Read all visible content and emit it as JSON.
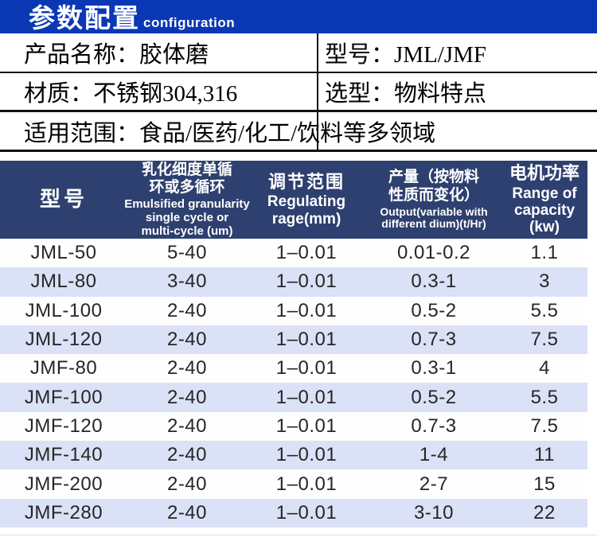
{
  "banner": {
    "title_cn": "参数配置",
    "title_en": "configuration",
    "bg_color": "#0a38b5"
  },
  "info": {
    "product_name": "产品名称：胶体磨",
    "model": "型号：JML/JMF",
    "material": "材质：不锈钢304,316",
    "selection": "选型：物料特点",
    "scope": "适用范围：食品/医药/化工/饮料等多领域"
  },
  "table": {
    "header_bg": "#2e406f",
    "stripe_color": "#dbe1f6",
    "columns": [
      {
        "cn": "型号",
        "en": "",
        "cn_lines": [
          "型号"
        ],
        "en_lines": []
      },
      {
        "cn": "乳化细度单循环或多循环",
        "en": "Emulsified granularity single cycle or multi-cycle (um)",
        "cn_lines": [
          "乳化细度单循",
          "环或多循环"
        ],
        "en_lines": [
          "Emulsified granularity",
          "single cycle or",
          "multi-cycle (um)"
        ]
      },
      {
        "cn": "调节范围",
        "en": "Regulating rage(mm)",
        "cn_lines": [
          "调节范围"
        ],
        "en_lines": [
          "Regulating",
          "rage(mm)"
        ]
      },
      {
        "cn": "产量（按物料性质而变化）",
        "en": "Output(variable with different  dium)(t/Hr)",
        "cn_lines": [
          "产量（按物料",
          "性质而变化）"
        ],
        "en_lines": [
          "Output(variable with",
          "different  dium)(t/Hr)"
        ]
      },
      {
        "cn": "电机功率",
        "en": "Range of capacity (kw)",
        "cn_lines": [
          "电机功率"
        ],
        "en_lines": [
          "Range of",
          "capacity",
          "(kw)"
        ]
      }
    ],
    "rows": [
      [
        "JML-50",
        "5-40",
        "1–0.01",
        "0.01-0.2",
        "1.1"
      ],
      [
        "JML-80",
        "3-40",
        "1–0.01",
        "0.3-1",
        "3"
      ],
      [
        "JML-100",
        "2-40",
        "1–0.01",
        "0.5-2",
        "5.5"
      ],
      [
        "JML-120",
        "2-40",
        "1–0.01",
        "0.7-3",
        "7.5"
      ],
      [
        "JMF-80",
        "2-40",
        "1–0.01",
        "0.3-1",
        "4"
      ],
      [
        "JMF-100",
        "2-40",
        "1–0.01",
        "0.5-2",
        "5.5"
      ],
      [
        "JMF-120",
        "2-40",
        "1–0.01",
        "0.7-3",
        "7.5"
      ],
      [
        "JMF-140",
        "2-40",
        "1–0.01",
        "1-4",
        "11"
      ],
      [
        "JMF-200",
        "2-40",
        "1–0.01",
        "2-7",
        "15"
      ],
      [
        "JMF-280",
        "2-40",
        "1–0.01",
        "3-10",
        "22"
      ]
    ]
  }
}
